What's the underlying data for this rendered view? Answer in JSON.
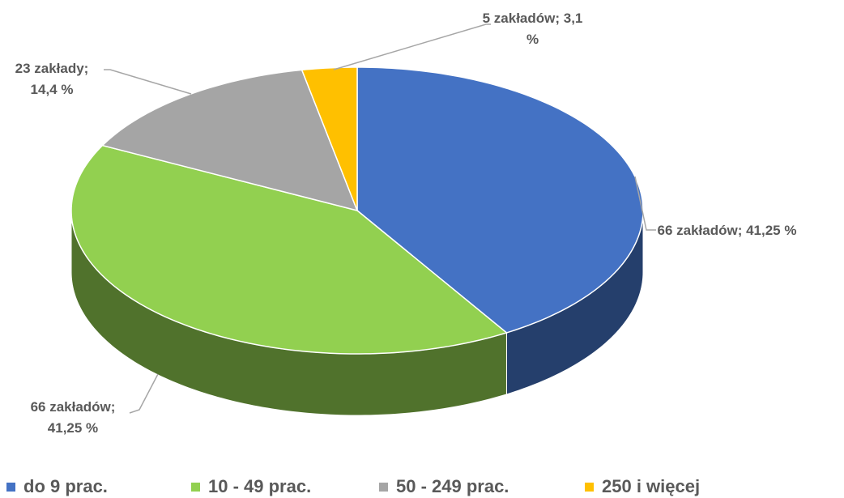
{
  "chart_data": {
    "type": "pie3d",
    "categories": [
      "do 9 prac.",
      "10 - 49 prac.",
      "50 - 249 prac.",
      "250 i więcej"
    ],
    "values": [
      41.25,
      41.25,
      14.4,
      3.1
    ],
    "value_labels": [
      "66 zakładów; 41,25 %",
      "66 zakładów; 41,25 %",
      "23 zakłady; 14,4 %",
      "5 zakładów; 3,1 %"
    ],
    "colors": [
      "#4472c4",
      "#92d050",
      "#a5a5a5",
      "#ffc000"
    ],
    "legend": "bottom"
  }
}
